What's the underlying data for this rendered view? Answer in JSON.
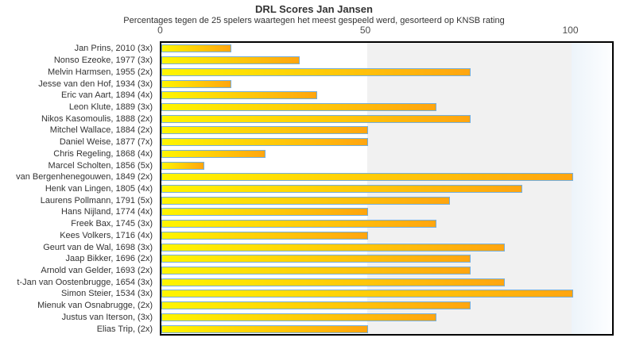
{
  "title": "DRL Scores Jan Jansen",
  "subtitle": "Percentages tegen de 25 spelers waartegen het meest gespeeld werd, gesorteerd op KNSB rating",
  "chart_data": {
    "type": "bar",
    "orientation": "horizontal",
    "title": "DRL Scores Jan Jansen",
    "subtitle": "Percentages tegen de 25 spelers waartegen het meest gespeeld werd, gesorteerd op KNSB rating",
    "categories": [
      "Jan Prins, 2010 (3x)",
      "Nonso Ezeoke, 1977 (3x)",
      "Melvin Harmsen, 1955 (2x)",
      "Jesse van den Hof, 1934 (3x)",
      "Eric van Aart, 1894 (4x)",
      "Leon Klute, 1889 (3x)",
      "Nikos Kasomoulis, 1888 (2x)",
      "Mitchel Wallace, 1884 (2x)",
      "Daniel Weise, 1877 (7x)",
      "Chris Regeling, 1868 (4x)",
      "Marcel Scholten, 1856 (5x)",
      "van Bergenhenegouwen, 1849 (2x)",
      "Henk van Lingen, 1805 (4x)",
      "Laurens Pollmann, 1791 (5x)",
      "Hans Nijland, 1774 (4x)",
      "Freek Bax, 1745 (3x)",
      "Kees Volkers, 1716 (4x)",
      "Geurt van de Wal, 1698 (3x)",
      "Jaap Bikker, 1696 (2x)",
      "Arnold van Gelder, 1693 (2x)",
      "t-Jan van Oostenbrugge, 1654 (3x)",
      "Simon Steier, 1534 (3x)",
      "Mienuk van Osnabrugge,  (2x)",
      "Justus van Iterson,  (3x)",
      "Elias Trip,  (2x)"
    ],
    "values": [
      16.7,
      33.3,
      75,
      16.7,
      37.5,
      66.7,
      75,
      50,
      50,
      25,
      10,
      100,
      87.5,
      70,
      50,
      66.7,
      50,
      83.3,
      75,
      75,
      83.3,
      100,
      75,
      66.7,
      50
    ],
    "xlim": [
      0,
      110
    ],
    "x_ticks": [
      0,
      50,
      100
    ],
    "xlabel": "",
    "ylabel": "",
    "legend": "none",
    "grid": "off",
    "plot_bands": [
      {
        "from": 0,
        "to": 50,
        "color": "#ffffff"
      },
      {
        "from": 50,
        "to": 100,
        "color": "#f1f1f1"
      },
      {
        "from": 100,
        "to": 110,
        "color": "#f3f8fc"
      }
    ],
    "bar_style": {
      "gradient_start": "#fff500",
      "gradient_end": "#ffa510",
      "border_color": "#74aedc"
    }
  }
}
